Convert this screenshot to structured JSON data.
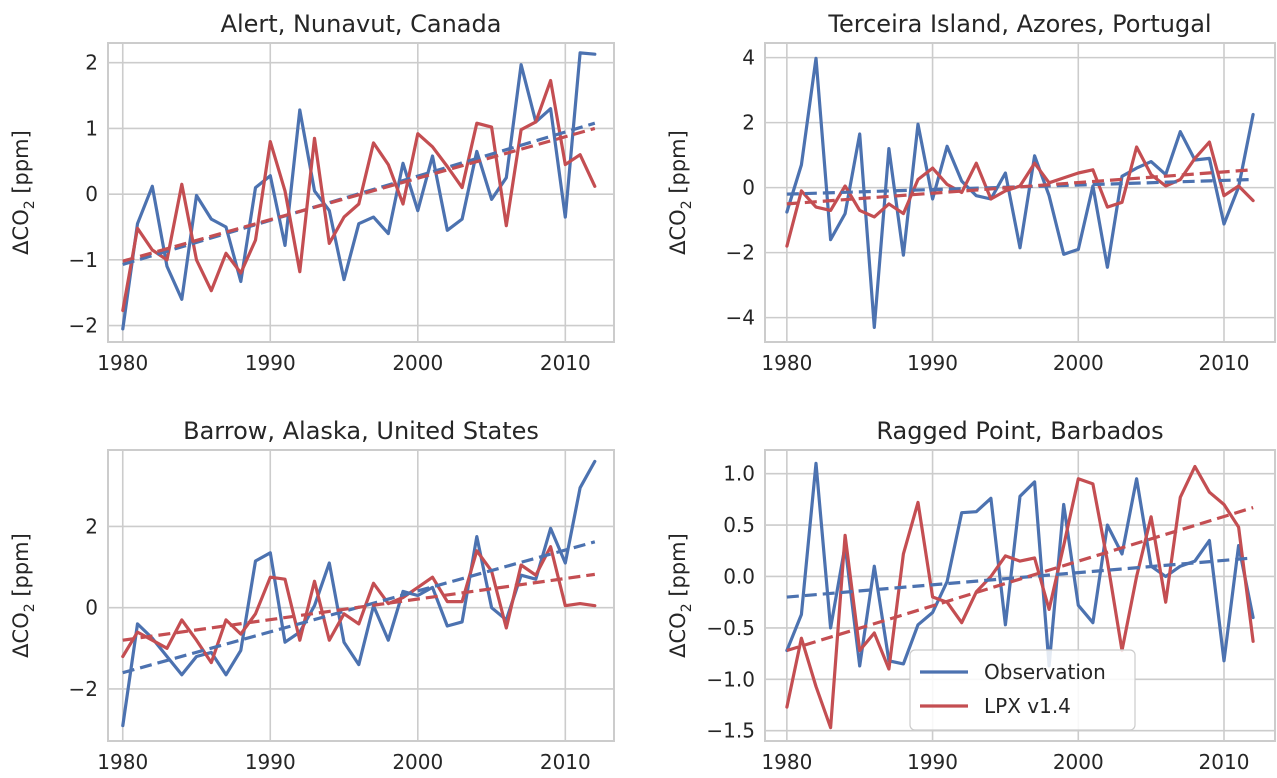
{
  "colors": {
    "observation": "#4c72b0",
    "model": "#c44e52",
    "grid": "#cccccc",
    "text": "#262626"
  },
  "legend": {
    "placement": "lower-center",
    "subplot": 3
  },
  "chart_data": [
    {
      "type": "line",
      "title": "Alert, Nunavut, Canada",
      "ylabel": "ΔCO2 [ppm]",
      "xlim": [
        1979,
        2013.3
      ],
      "ylim": [
        -2.25,
        2.3
      ],
      "xticks": [
        1980,
        1990,
        2000,
        2010
      ],
      "xtick_labels": [
        "1980",
        "1990",
        "2000",
        "2010"
      ],
      "yticks": [
        -2,
        -1,
        0,
        1,
        2
      ],
      "ytick_labels": [
        "−2",
        "−1",
        "0",
        "1",
        "2"
      ],
      "x": [
        1980,
        1981,
        1982,
        1983,
        1984,
        1985,
        1986,
        1987,
        1988,
        1989,
        1990,
        1991,
        1992,
        1993,
        1994,
        1995,
        1996,
        1997,
        1998,
        1999,
        2000,
        2001,
        2002,
        2003,
        2004,
        2005,
        2006,
        2007,
        2008,
        2009,
        2010,
        2011,
        2012
      ],
      "series": [
        {
          "name": "Observation",
          "values": [
            -2.05,
            -0.45,
            0.12,
            -1.1,
            -1.6,
            -0.02,
            -0.38,
            -0.5,
            -1.33,
            0.1,
            0.28,
            -0.78,
            1.28,
            0.05,
            -0.25,
            -1.3,
            -0.45,
            -0.35,
            -0.6,
            0.47,
            -0.25,
            0.58,
            -0.55,
            -0.38,
            0.65,
            -0.08,
            0.25,
            1.97,
            1.1,
            1.3,
            -0.35,
            2.15,
            2.13
          ]
        },
        {
          "name": "LPX v1.4",
          "values": [
            -1.77,
            -0.52,
            -0.85,
            -1.0,
            0.15,
            -1.0,
            -1.47,
            -0.9,
            -1.2,
            -0.7,
            0.8,
            0.05,
            -1.18,
            0.85,
            -0.75,
            -0.35,
            -0.15,
            0.78,
            0.45,
            -0.15,
            0.92,
            0.72,
            0.42,
            0.1,
            1.08,
            1.02,
            -0.48,
            0.98,
            1.1,
            1.73,
            0.45,
            0.6,
            0.12
          ]
        }
      ],
      "trends": [
        {
          "series": "Observation",
          "x": [
            1980,
            2012
          ],
          "y": [
            -1.07,
            1.08
          ]
        },
        {
          "series": "LPX v1.4",
          "x": [
            1980,
            2012
          ],
          "y": [
            -1.02,
            1.0
          ]
        }
      ]
    },
    {
      "type": "line",
      "title": "Terceira Island, Azores, Portugal",
      "ylabel": "ΔCO2 [ppm]",
      "xlim": [
        1978.5,
        2013.5
      ],
      "ylim": [
        -4.75,
        4.45
      ],
      "xticks": [
        1980,
        1990,
        2000,
        2010
      ],
      "xtick_labels": [
        "1980",
        "1990",
        "2000",
        "2010"
      ],
      "yticks": [
        -4,
        -2,
        0,
        2,
        4
      ],
      "ytick_labels": [
        "−4",
        "−2",
        "0",
        "2",
        "4"
      ],
      "x": [
        1980,
        1981,
        1982,
        1983,
        1984,
        1985,
        1986,
        1987,
        1988,
        1989,
        1990,
        1991,
        1992,
        1993,
        1994,
        1995,
        1996,
        1997,
        1998,
        1999,
        2000,
        2001,
        2002,
        2003,
        2004,
        2005,
        2006,
        2007,
        2008,
        2009,
        2010,
        2011,
        2012
      ],
      "series": [
        {
          "name": "Observation",
          "values": [
            -0.75,
            0.7,
            3.98,
            -1.6,
            -0.8,
            1.65,
            -4.3,
            1.2,
            -2.08,
            1.95,
            -0.35,
            1.27,
            0.2,
            -0.25,
            -0.35,
            0.45,
            -1.85,
            0.98,
            -0.25,
            -2.05,
            -1.9,
            0.05,
            -2.45,
            0.35,
            0.6,
            0.8,
            0.4,
            1.72,
            0.85,
            0.9,
            -1.12,
            0.02,
            2.25
          ]
        },
        {
          "name": "LPX v1.4",
          "values": [
            -1.8,
            -0.1,
            -0.6,
            -0.7,
            0.05,
            -0.7,
            -0.9,
            -0.5,
            -0.8,
            0.25,
            0.6,
            0.1,
            -0.15,
            0.75,
            -0.35,
            -0.1,
            0.05,
            0.75,
            0.15,
            0.3,
            0.45,
            0.55,
            -0.6,
            -0.45,
            1.25,
            0.4,
            0.05,
            0.25,
            0.9,
            1.4,
            -0.25,
            0.05,
            -0.4
          ]
        }
      ],
      "trends": [
        {
          "series": "Observation",
          "x": [
            1980,
            2012
          ],
          "y": [
            -0.2,
            0.25
          ]
        },
        {
          "series": "LPX v1.4",
          "x": [
            1980,
            2012
          ],
          "y": [
            -0.5,
            0.55
          ]
        }
      ]
    },
    {
      "type": "line",
      "title": "Barrow, Alaska, United States",
      "ylabel": "ΔCO2 [ppm]",
      "xlim": [
        1979,
        2013.3
      ],
      "ylim": [
        -3.28,
        3.88
      ],
      "xticks": [
        1980,
        1990,
        2000,
        2010
      ],
      "xtick_labels": [
        "1980",
        "1990",
        "2000",
        "2010"
      ],
      "yticks": [
        -2,
        0,
        2
      ],
      "ytick_labels": [
        "−2",
        "0",
        "2"
      ],
      "x": [
        1980,
        1981,
        1982,
        1983,
        1984,
        1985,
        1986,
        1987,
        1988,
        1989,
        1990,
        1991,
        1992,
        1993,
        1994,
        1995,
        1996,
        1997,
        1998,
        1999,
        2000,
        2001,
        2002,
        2003,
        2004,
        2005,
        2006,
        2007,
        2008,
        2009,
        2010,
        2011,
        2012
      ],
      "series": [
        {
          "name": "Observation",
          "values": [
            -2.9,
            -0.4,
            -0.75,
            -1.2,
            -1.65,
            -1.2,
            -1.1,
            -1.65,
            -1.05,
            1.15,
            1.35,
            -0.85,
            -0.6,
            0.05,
            1.1,
            -0.85,
            -1.4,
            0.05,
            -0.8,
            0.4,
            0.3,
            0.5,
            -0.45,
            -0.35,
            1.75,
            0.0,
            -0.3,
            0.8,
            0.7,
            1.95,
            1.1,
            2.95,
            3.6
          ]
        },
        {
          "name": "LPX v1.4",
          "values": [
            -1.2,
            -0.6,
            -0.8,
            -1.0,
            -0.3,
            -0.8,
            -1.35,
            -0.3,
            -0.65,
            -0.15,
            0.75,
            0.7,
            -0.8,
            0.65,
            -0.8,
            -0.15,
            -0.4,
            0.6,
            0.1,
            0.25,
            0.5,
            0.75,
            0.15,
            0.15,
            1.4,
            0.9,
            -0.5,
            1.05,
            0.8,
            1.5,
            0.05,
            0.1,
            0.05
          ]
        }
      ],
      "trends": [
        {
          "series": "Observation",
          "x": [
            1980,
            2012
          ],
          "y": [
            -1.6,
            1.62
          ]
        },
        {
          "series": "LPX v1.4",
          "x": [
            1980,
            2012
          ],
          "y": [
            -0.8,
            0.82
          ]
        }
      ]
    },
    {
      "type": "line",
      "title": "Ragged Point, Barbados",
      "ylabel": "ΔCO2 [ppm]",
      "xlim": [
        1978.5,
        2013.5
      ],
      "ylim": [
        -1.6,
        1.23
      ],
      "xticks": [
        1980,
        1990,
        2000,
        2010
      ],
      "xtick_labels": [
        "1980",
        "1990",
        "2000",
        "2010"
      ],
      "yticks": [
        -1.5,
        -1.0,
        -0.5,
        0.0,
        0.5,
        1.0
      ],
      "ytick_labels": [
        "−1.5",
        "−1.0",
        "−0.5",
        "0.0",
        "0.5",
        "1.0"
      ],
      "x": [
        1980,
        1981,
        1982,
        1983,
        1984,
        1985,
        1986,
        1987,
        1988,
        1989,
        1990,
        1991,
        1992,
        1993,
        1994,
        1995,
        1996,
        1997,
        1998,
        1999,
        2000,
        2001,
        2002,
        2003,
        2004,
        2005,
        2006,
        2007,
        2008,
        2009,
        2010,
        2011,
        2012
      ],
      "series": [
        {
          "name": "Observation",
          "values": [
            -0.72,
            -0.37,
            1.1,
            -0.5,
            0.3,
            -0.87,
            0.1,
            -0.82,
            -0.85,
            -0.47,
            -0.35,
            -0.05,
            0.62,
            0.63,
            0.76,
            -0.47,
            0.78,
            0.92,
            -0.87,
            0.7,
            -0.28,
            -0.45,
            0.5,
            0.22,
            0.95,
            0.1,
            0.0,
            0.1,
            0.15,
            0.35,
            -0.82,
            0.3,
            -0.4
          ]
        },
        {
          "name": "LPX v1.4",
          "values": [
            -1.27,
            -0.6,
            -1.07,
            -1.47,
            0.4,
            -0.72,
            -0.55,
            -0.9,
            0.22,
            0.72,
            -0.2,
            -0.25,
            -0.45,
            -0.15,
            0.0,
            0.2,
            0.15,
            0.18,
            -0.32,
            0.3,
            0.95,
            0.9,
            0.15,
            -0.72,
            0.0,
            0.58,
            -0.25,
            0.77,
            1.07,
            0.82,
            0.7,
            0.48,
            -0.63
          ]
        }
      ],
      "trends": [
        {
          "series": "Observation",
          "x": [
            1980,
            2012
          ],
          "y": [
            -0.2,
            0.18
          ]
        },
        {
          "series": "LPX v1.4",
          "x": [
            1980,
            2012
          ],
          "y": [
            -0.72,
            0.67
          ]
        }
      ]
    }
  ]
}
